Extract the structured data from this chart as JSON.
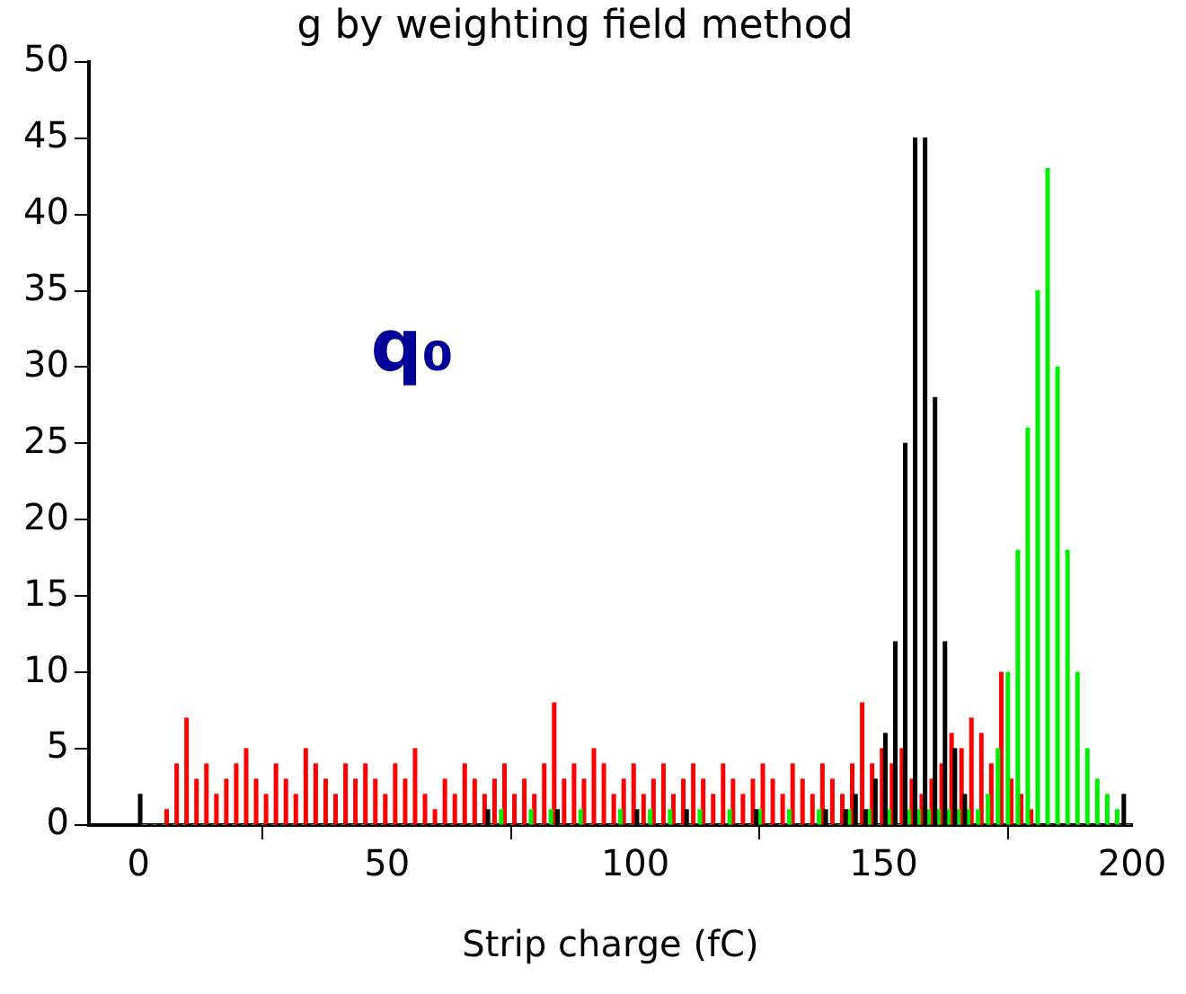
{
  "chart_data": {
    "type": "histogram",
    "title": "g by weighting field method",
    "xlabel": "Strip charge (fC)",
    "annotations": [
      "q₀"
    ],
    "bins": [
      0,
      2,
      4,
      6,
      8,
      10,
      12,
      14,
      16,
      18,
      20,
      22,
      24,
      26,
      28,
      30,
      32,
      34,
      36,
      38,
      40,
      42,
      44,
      46,
      48,
      50,
      52,
      54,
      56,
      58,
      60,
      62,
      64,
      66,
      68,
      70,
      72,
      74,
      76,
      78,
      80,
      82,
      84,
      86,
      88,
      90,
      92,
      94,
      96,
      98,
      100,
      102,
      104,
      106,
      108,
      110,
      112,
      114,
      116,
      118,
      120,
      122,
      124,
      126,
      128,
      130,
      132,
      134,
      136,
      138,
      140,
      142,
      144,
      146,
      148,
      150,
      152,
      154,
      156,
      158,
      160,
      162,
      164,
      166,
      168,
      170,
      172,
      174,
      176,
      178,
      180,
      182,
      184,
      186,
      188,
      190,
      192,
      194,
      196,
      198,
      200
    ],
    "series": [
      {
        "color": "#000000",
        "values": [
          2,
          0,
          0,
          0,
          0,
          0,
          0,
          0,
          0,
          0,
          0,
          0,
          0,
          0,
          0,
          0,
          0,
          0,
          0,
          0,
          0,
          0,
          0,
          0,
          0,
          0,
          0,
          0,
          0,
          0,
          0,
          0,
          0,
          0,
          0,
          1,
          0,
          0,
          0,
          0,
          0,
          0,
          1,
          0,
          0,
          0,
          0,
          0,
          0,
          0,
          1,
          0,
          0,
          0,
          0,
          1,
          0,
          0,
          0,
          0,
          0,
          0,
          1,
          0,
          0,
          0,
          0,
          0,
          0,
          1,
          0,
          1,
          2,
          1,
          3,
          6,
          12,
          25,
          45,
          45,
          28,
          12,
          5,
          2,
          0,
          0,
          0,
          0,
          0,
          0,
          0,
          0,
          0,
          0,
          0,
          0,
          0,
          0,
          0,
          2
        ]
      },
      {
        "color": "#00ee00",
        "values": [
          0,
          0,
          0,
          0,
          0,
          0,
          0,
          0,
          0,
          0,
          0,
          0,
          0,
          0,
          0,
          0,
          0,
          0,
          0,
          0,
          0,
          0,
          0,
          0,
          0,
          0,
          0,
          0,
          0,
          0,
          0,
          0,
          0,
          0,
          0,
          0,
          1,
          0,
          0,
          1,
          0,
          1,
          0,
          0,
          1,
          0,
          0,
          0,
          1,
          0,
          0,
          1,
          0,
          1,
          0,
          0,
          1,
          0,
          0,
          1,
          0,
          0,
          1,
          0,
          0,
          1,
          0,
          0,
          1,
          0,
          0,
          1,
          0,
          1,
          0,
          1,
          0,
          1,
          1,
          1,
          1,
          1,
          1,
          1,
          1,
          2,
          5,
          10,
          18,
          26,
          35,
          43,
          30,
          18,
          10,
          5,
          3,
          2,
          1,
          0
        ]
      },
      {
        "color": "#ff0000",
        "values": [
          0,
          0,
          1,
          4,
          7,
          3,
          4,
          2,
          3,
          4,
          5,
          3,
          2,
          4,
          3,
          2,
          5,
          4,
          3,
          2,
          4,
          3,
          4,
          3,
          2,
          4,
          3,
          5,
          2,
          1,
          3,
          2,
          4,
          3,
          2,
          3,
          4,
          2,
          3,
          2,
          4,
          8,
          3,
          4,
          3,
          5,
          4,
          2,
          3,
          4,
          2,
          3,
          4,
          2,
          3,
          4,
          3,
          2,
          4,
          3,
          2,
          3,
          4,
          3,
          2,
          4,
          3,
          2,
          4,
          3,
          2,
          4,
          8,
          4,
          5,
          4,
          5,
          3,
          2,
          3,
          4,
          6,
          5,
          7,
          6,
          4,
          10,
          3,
          2,
          1,
          0,
          0,
          0,
          0,
          0,
          0,
          0,
          0,
          0,
          0
        ]
      }
    ],
    "xlim": [
      -10,
      200
    ],
    "xticks": [
      0,
      50,
      100,
      150,
      200
    ],
    "ylim": [
      0,
      50
    ],
    "yticks": [
      0,
      5,
      10,
      15,
      20,
      25,
      30,
      35,
      40,
      45,
      50
    ],
    "grid": false,
    "legend": false
  }
}
